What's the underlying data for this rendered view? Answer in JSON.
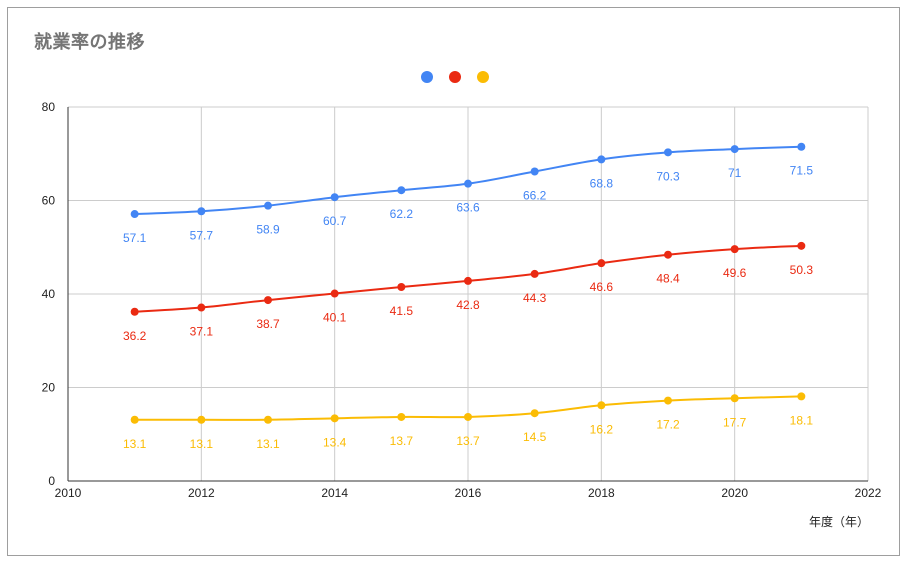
{
  "chart_data": {
    "type": "line",
    "title": "就業率の推移",
    "xlabel": "年度（年）",
    "ylabel": "",
    "xlim": [
      2010,
      2022
    ],
    "ylim": [
      0,
      80
    ],
    "x_ticks": [
      "2010",
      "2012",
      "2014",
      "2016",
      "2018",
      "2020",
      "2022"
    ],
    "y_ticks": [
      "0",
      "20",
      "40",
      "60",
      "80"
    ],
    "grid": true,
    "legend_position": "top",
    "x": [
      2011,
      2012,
      2013,
      2014,
      2015,
      2016,
      2017,
      2018,
      2019,
      2020,
      2021
    ],
    "series": [
      {
        "color": "#4285f4",
        "values": [
          57.1,
          57.7,
          58.9,
          60.7,
          62.2,
          63.6,
          66.2,
          68.8,
          70.3,
          71,
          71.5
        ],
        "labels": [
          "57.1",
          "57.7",
          "58.9",
          "60.7",
          "62.2",
          "63.6",
          "66.2",
          "68.8",
          "70.3",
          "71",
          "71.5"
        ]
      },
      {
        "color": "#ea2a12",
        "values": [
          36.2,
          37.1,
          38.7,
          40.1,
          41.5,
          42.8,
          44.3,
          46.6,
          48.4,
          49.6,
          50.3
        ],
        "labels": [
          "36.2",
          "37.1",
          "38.7",
          "40.1",
          "41.5",
          "42.8",
          "44.3",
          "46.6",
          "48.4",
          "49.6",
          "50.3"
        ]
      },
      {
        "color": "#fbbc04",
        "values": [
          13.1,
          13.1,
          13.1,
          13.4,
          13.7,
          13.7,
          14.5,
          16.2,
          17.2,
          17.7,
          18.1
        ],
        "labels": [
          "13.1",
          "13.1",
          "13.1",
          "13.4",
          "13.7",
          "13.7",
          "14.5",
          "16.2",
          "17.2",
          "17.7",
          "18.1"
        ]
      }
    ]
  }
}
